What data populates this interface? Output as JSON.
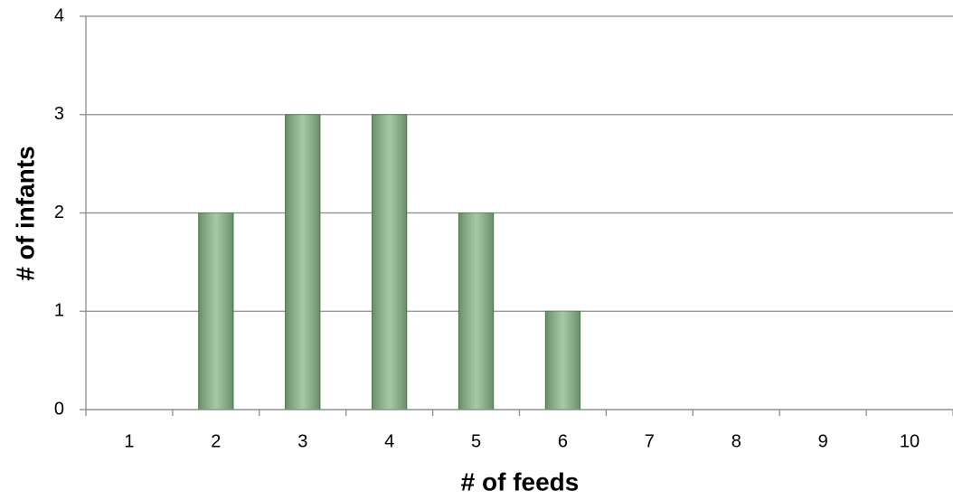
{
  "chart_data": {
    "type": "bar",
    "x_label": "# of feeds",
    "y_label": "# of infants",
    "categories": [
      "1",
      "2",
      "3",
      "4",
      "5",
      "6",
      "7",
      "8",
      "9",
      "10"
    ],
    "values": [
      0,
      2,
      3,
      3,
      2,
      1,
      0,
      0,
      0,
      0
    ],
    "color": "#8dbb8d",
    "ylim": [
      0,
      4
    ],
    "yticks": [
      0,
      1,
      2,
      3,
      4
    ],
    "grid": true
  }
}
